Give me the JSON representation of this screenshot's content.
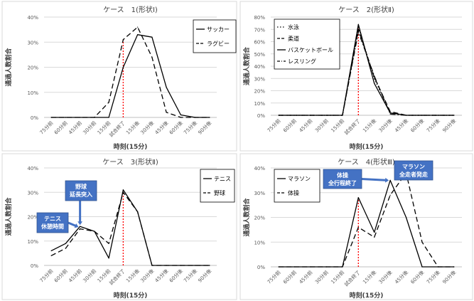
{
  "chart_data": [
    {
      "type": "line",
      "title": "ケース　1(形状Ⅰ)",
      "xlabel": "時刻(15分)",
      "ylabel": "通過人数割合",
      "categories": [
        "75分前",
        "60分前",
        "45分前",
        "30分前",
        "15分前",
        "試合終了",
        "15分後",
        "30分後",
        "45分後",
        "60分後",
        "75分後",
        "90分後"
      ],
      "yticks": [
        "0%",
        "10%",
        "20%",
        "30%",
        "40%"
      ],
      "ylim": [
        0,
        40
      ],
      "grid": true,
      "legend": "top-right",
      "event_index": 5,
      "series": [
        {
          "name": "サッカー",
          "dash": "solid",
          "values": [
            0,
            0,
            0,
            0,
            0,
            20,
            33,
            32,
            12,
            1,
            0,
            0
          ]
        },
        {
          "name": "ラグビー",
          "dash": "dashed",
          "values": [
            0,
            0,
            0,
            0,
            6,
            31,
            36,
            24,
            2,
            0,
            0,
            0
          ]
        }
      ],
      "annotations": []
    },
    {
      "type": "line",
      "title": "ケース　2(形状Ⅱ)",
      "xlabel": "時刻(15分)",
      "ylabel": "通過人数割合",
      "categories": [
        "75分前",
        "60分前",
        "45分前",
        "30分前",
        "15分前",
        "試合終了",
        "15分後",
        "30分後",
        "45分後",
        "60分後",
        "75分後",
        "90分後"
      ],
      "yticks": [
        "0%",
        "10%",
        "20%",
        "30%",
        "40%",
        "50%",
        "60%",
        "70%",
        "80%"
      ],
      "ylim": [
        0,
        80
      ],
      "grid": true,
      "legend": "top-left",
      "event_index": 5,
      "series": [
        {
          "name": "水泳",
          "dash": "dotted",
          "values": [
            0,
            0,
            0,
            0,
            0,
            72,
            30,
            2,
            0,
            0,
            0,
            0
          ]
        },
        {
          "name": "柔道",
          "dash": "dashed",
          "values": [
            0,
            0,
            0,
            0,
            0,
            70,
            31,
            3,
            0,
            0,
            0,
            0
          ]
        },
        {
          "name": "バスケットボール",
          "dash": "solid",
          "values": [
            0,
            0,
            0,
            0,
            0,
            74,
            26,
            2,
            0,
            0,
            0,
            0
          ]
        },
        {
          "name": "レスリング",
          "dash": "dashdot",
          "values": [
            0,
            0,
            0,
            0,
            0,
            68,
            32,
            1,
            0,
            0,
            0,
            0
          ]
        }
      ],
      "annotations": []
    },
    {
      "type": "line",
      "title": "ケース　3(形状Ⅱ)",
      "xlabel": "時刻(15分)",
      "ylabel": "通過人数割合",
      "categories": [
        "75分前",
        "60分前",
        "45分前",
        "30分前",
        "15分前",
        "試合終了",
        "15分後",
        "30分後",
        "45分後",
        "60分後",
        "75分後",
        "90分後"
      ],
      "yticks": [
        "0%",
        "10%",
        "20%",
        "30%",
        "40%"
      ],
      "ylim": [
        0,
        40
      ],
      "grid": true,
      "legend": "top-right",
      "event_index": 5,
      "series": [
        {
          "name": "テニス",
          "dash": "solid",
          "values": [
            6,
            9,
            16,
            14,
            3,
            31,
            22,
            0,
            0,
            0,
            0,
            0
          ]
        },
        {
          "name": "野球",
          "dash": "dashed",
          "values": [
            4,
            7,
            15,
            14,
            9,
            30,
            22,
            0,
            0,
            0,
            0,
            0
          ]
        }
      ],
      "annotations": [
        {
          "lines": [
            "野球",
            "延長突入"
          ],
          "point_index": 2,
          "point_value": 16,
          "box": "above"
        },
        {
          "lines": [
            "テニス",
            "休憩時間"
          ],
          "point_index": 2,
          "point_value": 16,
          "box": "left"
        }
      ]
    },
    {
      "type": "line",
      "title": "ケース　4(形状Ⅲ)",
      "xlabel": "時刻(15分)",
      "ylabel": "通過人数割合",
      "categories": [
        "75分前",
        "60分前",
        "45分前",
        "30分前",
        "15分前",
        "試合終了",
        "15分後",
        "30分後",
        "45分後",
        "60分後",
        "75分後",
        "90分後"
      ],
      "yticks": [
        "0%",
        "10%",
        "20%",
        "30%",
        "40%"
      ],
      "ylim": [
        0,
        40
      ],
      "grid": true,
      "legend": "top-left",
      "event_index": 5,
      "series": [
        {
          "name": "マラソン",
          "dash": "solid",
          "values": [
            0,
            0,
            0,
            0,
            0,
            28,
            14,
            35,
            20,
            0,
            0,
            0
          ]
        },
        {
          "name": "体操",
          "dash": "dashed",
          "values": [
            0,
            0,
            0,
            0,
            0,
            16,
            12,
            29,
            38,
            10,
            0,
            0
          ]
        }
      ],
      "annotations": [
        {
          "lines": [
            "体操",
            "全行程終了"
          ],
          "point_index": 7,
          "point_value": 35,
          "box": "left"
        },
        {
          "lines": [
            "マラソン",
            "全走者発走"
          ],
          "point_index": 8,
          "point_value": 38,
          "box": "above"
        }
      ]
    }
  ]
}
